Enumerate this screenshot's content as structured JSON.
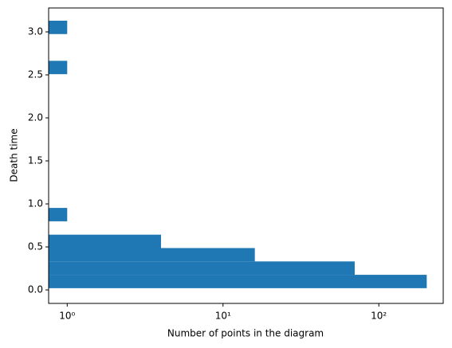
{
  "chart_data": {
    "type": "histogram",
    "orientation": "horizontal",
    "xlabel": "Number of points in the diagram",
    "ylabel": "Death time",
    "bins": [
      0.02,
      0.1755,
      0.331,
      0.4865,
      0.642,
      0.7975,
      0.953,
      1.1085,
      1.264,
      1.4195,
      1.575,
      1.7305,
      1.886,
      2.0415,
      2.197,
      2.3525,
      2.508,
      2.6635,
      2.819,
      2.9745,
      3.13
    ],
    "counts": [
      203,
      70,
      16,
      4,
      0,
      1,
      0,
      0,
      0,
      0,
      0,
      0,
      0,
      0,
      0,
      0,
      1,
      0,
      0,
      1
    ],
    "color": "#1f77b4",
    "xscale": "log",
    "xlim": [
      0.76,
      259
    ],
    "xticks": [
      {
        "value": 1,
        "label": "10⁰"
      },
      {
        "value": 10,
        "label": "10¹"
      },
      {
        "value": 100,
        "label": "10²"
      }
    ],
    "ylim": [
      -0.157,
      3.278
    ],
    "yticks": [
      {
        "value": 0,
        "label": "0.0"
      },
      {
        "value": 0.5,
        "label": "0.5"
      },
      {
        "value": 1,
        "label": "1.0"
      },
      {
        "value": 1.5,
        "label": "1.5"
      },
      {
        "value": 2,
        "label": "2.0"
      },
      {
        "value": 2.5,
        "label": "2.5"
      },
      {
        "value": 3,
        "label": "3.0"
      }
    ]
  }
}
